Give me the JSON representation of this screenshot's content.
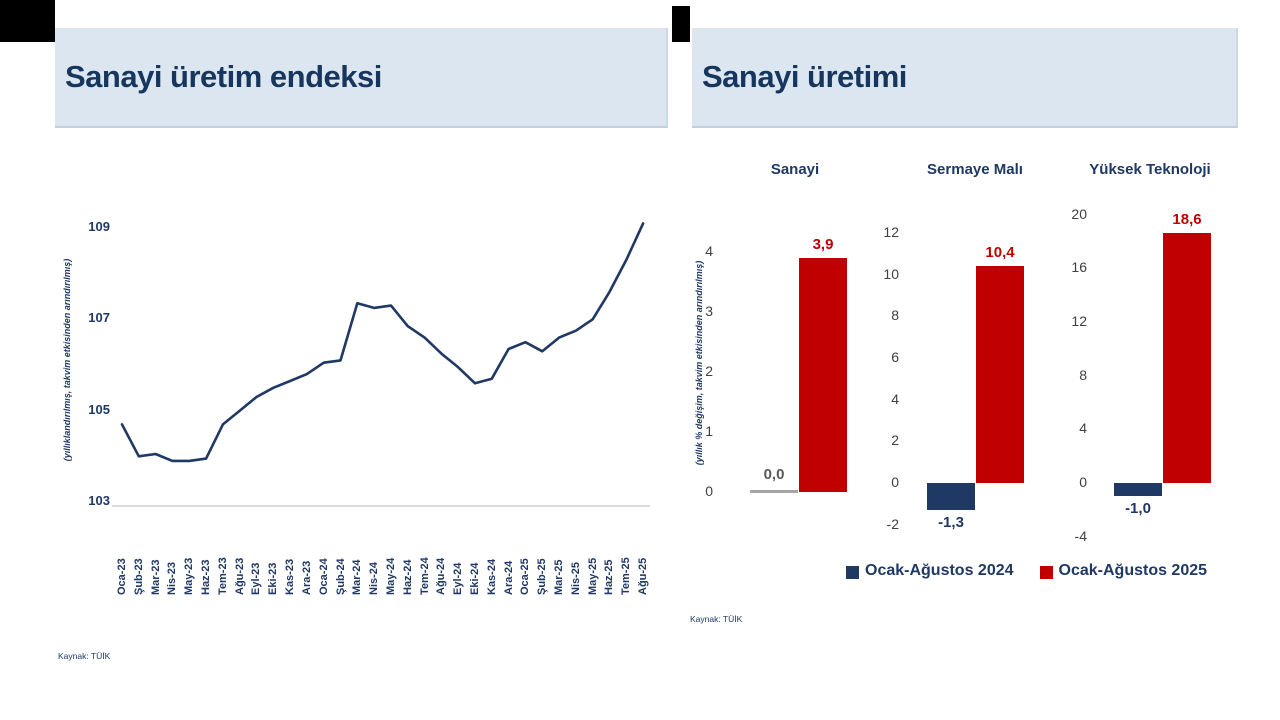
{
  "colors": {
    "navy": "#1f3864",
    "red": "#c00000",
    "title_text": "#17365d",
    "panel_header_bg": "#dce6f1",
    "axis_gray": "#cfcfcf",
    "zero_bar_gray": "#a6a6a6",
    "zero_label_gray": "#595959"
  },
  "left_panel": {
    "title": "Sanayi üretim endeksi",
    "source": "Kaynak: TÜİK"
  },
  "right_panel": {
    "title": "Sanayi üretimi",
    "source": "Kaynak: TÜİK"
  },
  "chart_data": [
    {
      "type": "line",
      "title": "Sanayi üretim endeksi",
      "ylabel": "(yıllıklandırılmış, takvim etkisinden arındırılmış)",
      "xlabel": "",
      "yticks": [
        103,
        105,
        107,
        109
      ],
      "ylim": [
        103,
        109.6
      ],
      "grid": false,
      "line_color": "#1f3864",
      "categories": [
        "Oca-23",
        "Şub-23",
        "Mar-23",
        "Nis-23",
        "May-23",
        "Haz-23",
        "Tem-23",
        "Ağu-23",
        "Eyl-23",
        "Eki-23",
        "Kas-23",
        "Ara-23",
        "Oca-24",
        "Şub-24",
        "Mar-24",
        "Nis-24",
        "May-24",
        "Haz-24",
        "Tem-24",
        "Ağu-24",
        "Eyl-24",
        "Eki-24",
        "Kas-24",
        "Ara-24",
        "Oca-25",
        "Şub-25",
        "Mar-25",
        "Nis-25",
        "May-25",
        "Haz-25",
        "Tem-25",
        "Ağu-25"
      ],
      "values": [
        104.7,
        104.0,
        104.05,
        103.9,
        103.9,
        103.95,
        104.7,
        105.0,
        105.3,
        105.5,
        105.65,
        105.8,
        106.05,
        106.1,
        107.35,
        107.25,
        107.3,
        106.85,
        106.6,
        106.25,
        105.95,
        105.6,
        105.7,
        106.35,
        106.5,
        106.3,
        106.6,
        106.75,
        107.0,
        107.6,
        108.3,
        109.1
      ]
    },
    {
      "type": "bar",
      "title": "Sanayi üretimi",
      "ylabel": "(yıllık % değişim, takvim etkisinden arındırılmış)",
      "legend_position": "bottom",
      "series": [
        {
          "name": "Ocak-Ağustos 2024",
          "color": "#1f3864"
        },
        {
          "name": "Ocak-Ağustos 2025",
          "color": "#c00000"
        }
      ],
      "groups": [
        {
          "name": "Sanayi",
          "yticks": [
            4,
            3,
            2,
            1,
            0
          ],
          "ylim": [
            -0.8,
            4.4
          ],
          "values": [
            0.0,
            3.9
          ],
          "value_labels": [
            {
              "text": "0,0",
              "color": "#595959"
            },
            {
              "text": "3,9",
              "color": "#c00000"
            }
          ]
        },
        {
          "name": "Sermaye Malı",
          "yticks": [
            12,
            10,
            8,
            6,
            4,
            2,
            0,
            -2
          ],
          "ylim": [
            -2.5,
            12.5
          ],
          "values": [
            -1.3,
            10.4
          ],
          "value_labels": [
            {
              "text": "-1,3",
              "color": "#1f3864"
            },
            {
              "text": "10,4",
              "color": "#c00000"
            }
          ]
        },
        {
          "name": "Yüksek Teknoloji",
          "yticks": [
            20,
            16,
            12,
            8,
            4,
            0,
            -4
          ],
          "ylim": [
            -4.8,
            21
          ],
          "values": [
            -1.0,
            18.6
          ],
          "value_labels": [
            {
              "text": "-1,0",
              "color": "#1f3864"
            },
            {
              "text": "18,6",
              "color": "#c00000"
            }
          ]
        }
      ]
    }
  ]
}
